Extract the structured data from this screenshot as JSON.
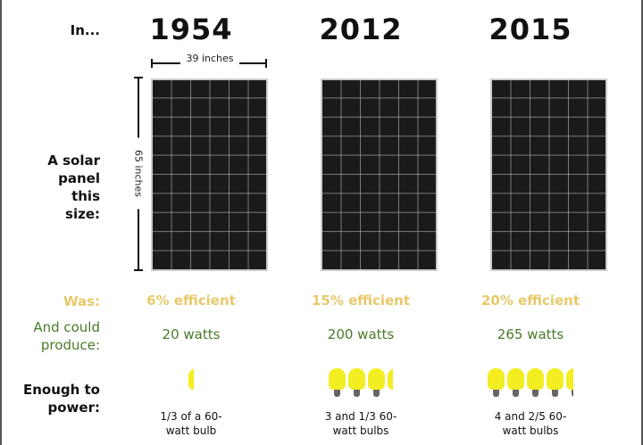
{
  "labels": {
    "in": "In...",
    "panel": "A solar panel this size:",
    "was": "Was:",
    "produce": "And could produce:",
    "power": "Enough to power:"
  },
  "dimensions": {
    "width": "39 inches",
    "height": "65 inches"
  },
  "columns": [
    {
      "year": "1954",
      "efficiency": "6% efficient",
      "watts": "20 watts",
      "bulbs": 0.333,
      "power_text": "1/3 of a 60-watt bulb"
    },
    {
      "year": "2012",
      "efficiency": "15% efficient",
      "watts": "200 watts",
      "bulbs": 3.333,
      "power_text": "3 and 1/3 60-watt bulbs"
    },
    {
      "year": "2015",
      "efficiency": "20% efficient",
      "watts": "265 watts",
      "bulbs": 4.4,
      "power_text": "4 and 2/5 60-watt bulbs"
    }
  ],
  "colors": {
    "efficiency": "#e8c96a",
    "watts": "#4a7a2a",
    "bulb": "#f2ee22"
  }
}
